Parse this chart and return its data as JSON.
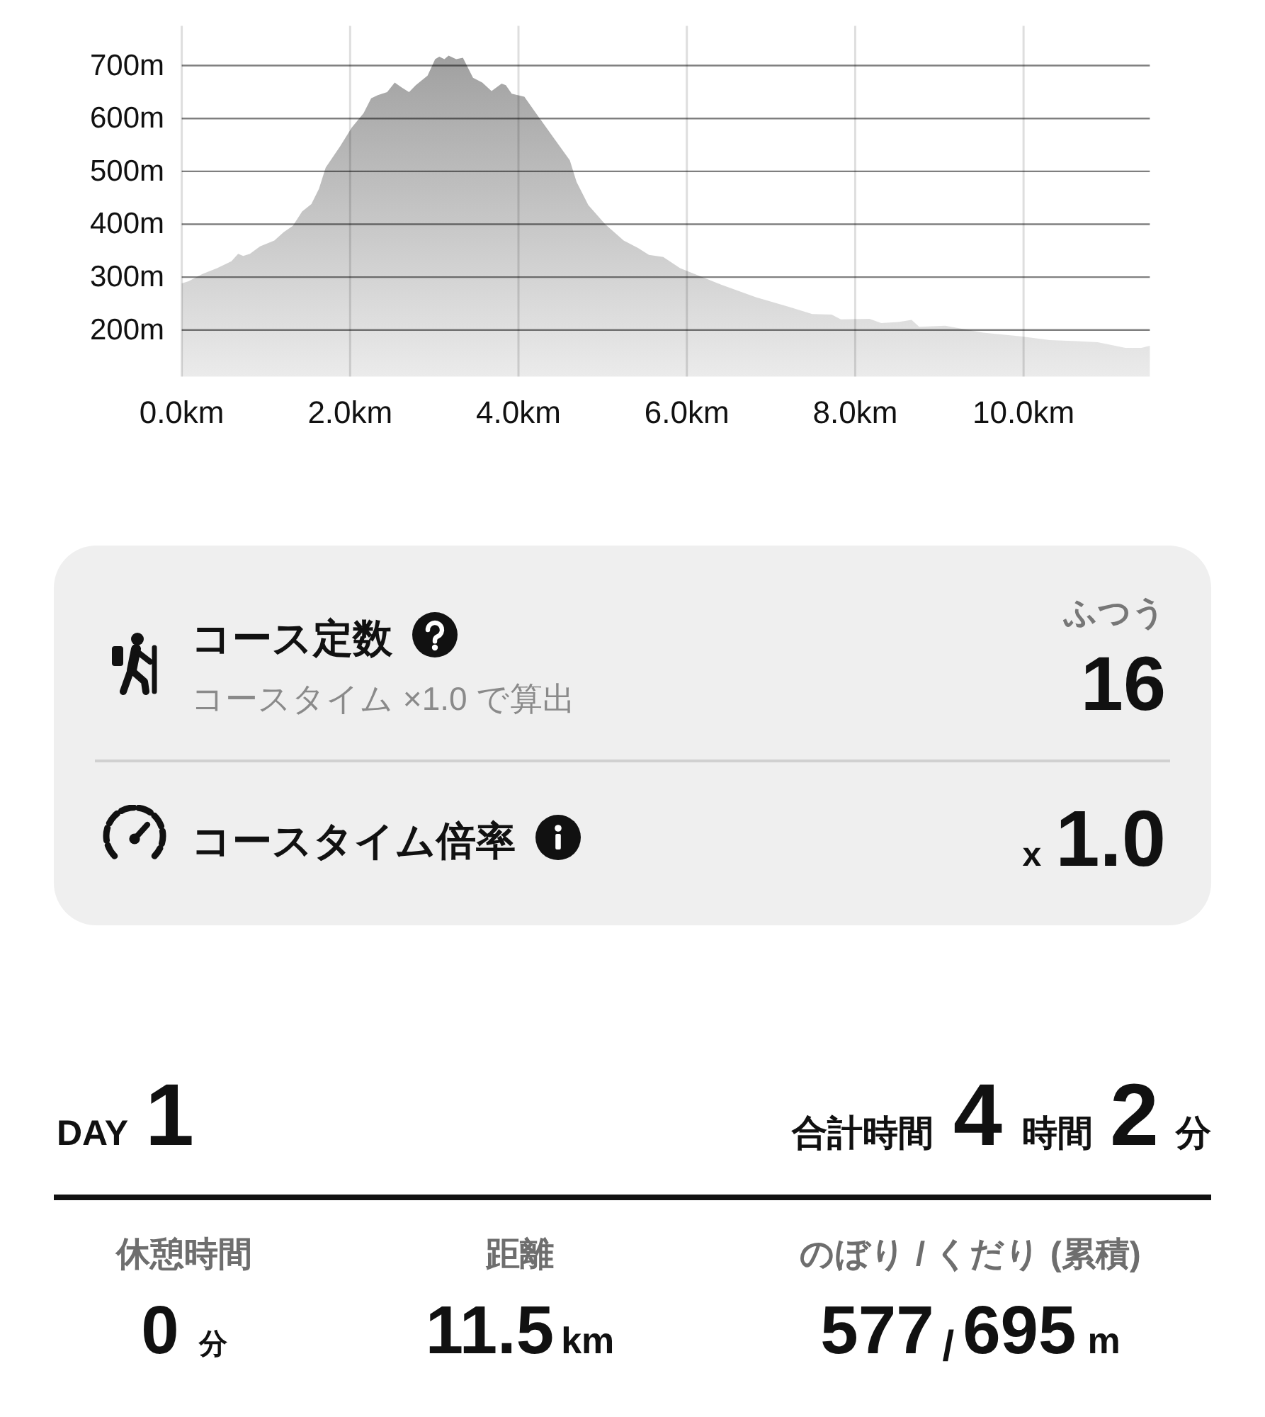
{
  "chart_data": [
    {
      "type": "area",
      "x": [
        0,
        0.08,
        0.25,
        0.42,
        0.59,
        0.67,
        0.73,
        0.81,
        0.93,
        1.1,
        1.21,
        1.32,
        1.43,
        1.54,
        1.63,
        1.71,
        1.88,
        2.02,
        2.16,
        2.25,
        2.33,
        2.44,
        2.53,
        2.61,
        2.7,
        2.78,
        2.92,
        3.01,
        3.06,
        3.12,
        3.17,
        3.26,
        3.34,
        3.46,
        3.57,
        3.68,
        3.8,
        3.85,
        3.92,
        4.07,
        4.19,
        4.41,
        4.61,
        4.69,
        4.83,
        5.03,
        5.25,
        5.42,
        5.55,
        5.72,
        5.92,
        6.15,
        6.37,
        6.82,
        7.21,
        7.49,
        7.72,
        7.83,
        8.17,
        8.31,
        8.51,
        8.67,
        8.76,
        9.07,
        9.52,
        9.97,
        10.31,
        10.88,
        11.21,
        11.4,
        11.5
      ],
      "values": [
        288,
        292,
        306,
        317,
        330,
        344,
        340,
        344,
        358,
        369,
        385,
        397,
        424,
        438,
        467,
        507,
        547,
        583,
        610,
        638,
        644,
        650,
        668,
        659,
        650,
        663,
        681,
        712,
        717,
        712,
        719,
        712,
        715,
        677,
        668,
        652,
        666,
        663,
        647,
        641,
        614,
        565,
        521,
        480,
        436,
        400,
        369,
        355,
        342,
        338,
        317,
        302,
        288,
        262,
        244,
        230,
        229,
        220,
        221,
        213,
        215,
        219,
        206,
        208,
        195,
        188,
        181,
        177,
        166,
        166,
        170
      ],
      "color": "#999999",
      "xlim": [
        0,
        11.5
      ],
      "ylim": [
        112,
        775
      ],
      "xticks": [
        {
          "value": 0,
          "label": "0.0km"
        },
        {
          "value": 2,
          "label": "2.0km"
        },
        {
          "value": 4,
          "label": "4.0km"
        },
        {
          "value": 6,
          "label": "6.0km"
        },
        {
          "value": 8,
          "label": "8.0km"
        },
        {
          "value": 10,
          "label": "10.0km"
        }
      ],
      "yticks": [
        {
          "value": 200,
          "label": "200m"
        },
        {
          "value": 300,
          "label": "300m"
        },
        {
          "value": 400,
          "label": "400m"
        },
        {
          "value": 500,
          "label": "500m"
        },
        {
          "value": 600,
          "label": "600m"
        },
        {
          "value": 700,
          "label": "700m"
        }
      ],
      "grid": true
    },
    {
      "type": "other",
      "annotations": [
        "コース定数",
        "コースタイム ×1.0 で算出",
        "ふつう",
        "16",
        "コースタイム倍率",
        "x",
        "1.0"
      ]
    },
    {
      "type": "other",
      "annotations": [
        "DAY",
        "1",
        "合計時間",
        "4",
        "時間",
        "2",
        "分",
        "休憩時間",
        "距離",
        "のぼり / くだり (累積)",
        "0",
        "分",
        "11.5",
        "km",
        "577",
        "/",
        "695",
        "m"
      ]
    }
  ]
}
